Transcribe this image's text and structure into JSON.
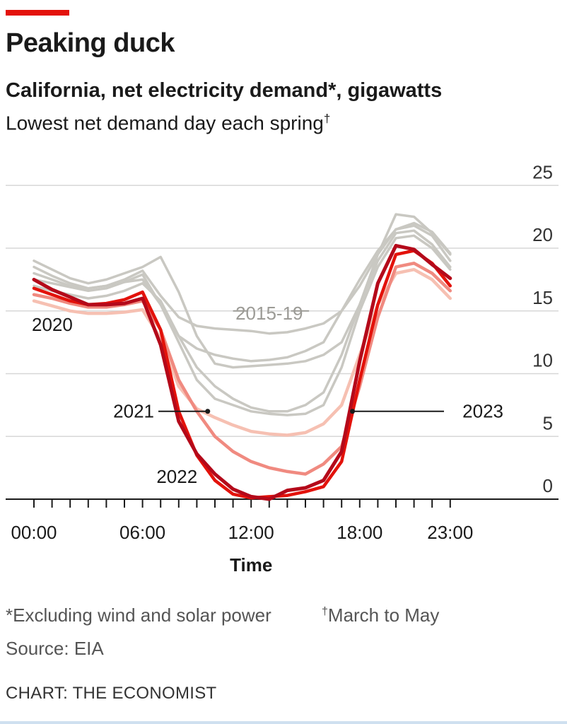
{
  "header": {
    "title": "Peaking duck",
    "subtitle": "California, net electricity demand*, gigawatts",
    "subtitle2": "Lowest net demand day each spring",
    "subtitle2_mark": "†"
  },
  "footer": {
    "note1": "*Excluding wind and solar power",
    "note2_mark": "†",
    "note2": "March to May",
    "source": "Source: EIA",
    "credit": "CHART: THE ECONOMIST"
  },
  "chart_data": {
    "type": "line",
    "xlabel": "Time",
    "ylabel": "",
    "ylim": [
      0,
      25
    ],
    "yticks": [
      0,
      5,
      10,
      15,
      20,
      25
    ],
    "xlim": [
      0,
      24
    ],
    "xticks_minor": [
      0,
      1,
      2,
      3,
      4,
      5,
      6,
      7,
      8,
      9,
      10,
      11,
      12,
      13,
      14,
      15,
      16,
      17,
      18,
      19,
      20,
      21,
      22,
      23
    ],
    "xtick_labels": [
      {
        "x": 0,
        "label": "00:00"
      },
      {
        "x": 6,
        "label": "06:00"
      },
      {
        "x": 12,
        "label": "12:00"
      },
      {
        "x": 18,
        "label": "18:00"
      },
      {
        "x": 23,
        "label": "23:00"
      }
    ],
    "grid": true,
    "colors": {
      "gray": "#c9c8c2",
      "2020": "#f6c0b2",
      "2021": "#f08a80",
      "2022": "#e3120b",
      "2023": "#b4091a",
      "axis": "#1a1a1a",
      "gridline": "#d7d7d7"
    },
    "group_label": "2015-19",
    "series": [
      {
        "name": "",
        "group": "2015-19",
        "colorKey": "gray",
        "x": [
          0,
          1,
          2,
          3,
          4,
          5,
          6,
          7,
          8,
          9,
          10,
          11,
          12,
          13,
          14,
          15,
          16,
          17,
          18,
          19,
          20,
          21,
          22,
          23
        ],
        "y": [
          17.5,
          17.2,
          16.9,
          16.6,
          16.8,
          17.3,
          17.9,
          15.5,
          13.0,
          12.0,
          11.5,
          11.2,
          11.0,
          11.1,
          11.3,
          11.8,
          12.5,
          15.0,
          17.5,
          19.8,
          21.5,
          21.8,
          21.0,
          19.0
        ]
      },
      {
        "name": "",
        "group": "2015-19",
        "colorKey": "gray",
        "x": [
          0,
          1,
          2,
          3,
          4,
          5,
          6,
          7,
          8,
          9,
          10,
          11,
          12,
          13,
          14,
          15,
          16,
          17,
          18,
          19,
          20,
          21,
          22,
          23
        ],
        "y": [
          18.0,
          17.5,
          17.0,
          16.8,
          17.0,
          17.5,
          18.2,
          16.2,
          14.5,
          13.8,
          13.6,
          13.5,
          13.4,
          13.2,
          13.3,
          13.6,
          14.0,
          15.0,
          17.0,
          19.5,
          21.5,
          22.0,
          21.3,
          19.6
        ]
      },
      {
        "name": "",
        "group": "2015-19",
        "colorKey": "gray",
        "x": [
          0,
          1,
          2,
          3,
          4,
          5,
          6,
          7,
          8,
          9,
          10,
          11,
          12,
          13,
          14,
          15,
          16,
          17,
          18,
          19,
          20,
          21,
          22,
          23
        ],
        "y": [
          19.0,
          18.3,
          17.6,
          17.2,
          17.5,
          18.0,
          18.5,
          19.3,
          16.5,
          13.0,
          10.8,
          10.5,
          10.6,
          10.7,
          10.8,
          11.0,
          11.5,
          12.5,
          15.5,
          19.5,
          22.7,
          22.5,
          21.2,
          19.5
        ]
      },
      {
        "name": "",
        "group": "2015-19",
        "colorKey": "gray",
        "x": [
          0,
          1,
          2,
          3,
          4,
          5,
          6,
          7,
          8,
          9,
          10,
          11,
          12,
          13,
          14,
          15,
          16,
          17,
          18,
          19,
          20,
          21,
          22,
          23
        ],
        "y": [
          17.0,
          16.6,
          16.3,
          16.0,
          16.2,
          16.6,
          17.2,
          15.8,
          13.0,
          10.5,
          9.0,
          8.0,
          7.3,
          7.0,
          7.0,
          7.5,
          8.5,
          11.5,
          15.5,
          19.0,
          21.2,
          21.4,
          20.3,
          18.5
        ]
      },
      {
        "name": "",
        "group": "2015-19",
        "colorKey": "gray",
        "x": [
          0,
          1,
          2,
          3,
          4,
          5,
          6,
          7,
          8,
          9,
          10,
          11,
          12,
          13,
          14,
          15,
          16,
          17,
          18,
          19,
          20,
          21,
          22,
          23
        ],
        "y": [
          18.5,
          17.8,
          17.2,
          16.8,
          17.0,
          17.3,
          17.5,
          15.5,
          12.5,
          9.5,
          8.0,
          7.5,
          7.0,
          6.8,
          6.7,
          6.8,
          7.5,
          10.5,
          15.0,
          18.5,
          20.8,
          21.0,
          20.0,
          18.3
        ]
      },
      {
        "name": "2020",
        "colorKey": "2020",
        "x": [
          0,
          1,
          2,
          3,
          4,
          5,
          6,
          7,
          8,
          9,
          10,
          11,
          12,
          13,
          14,
          15,
          16,
          17,
          18,
          19,
          20,
          21,
          22,
          23
        ],
        "y": [
          15.8,
          15.4,
          15.0,
          14.8,
          14.8,
          14.9,
          15.1,
          12.8,
          9.0,
          7.2,
          6.5,
          5.9,
          5.4,
          5.2,
          5.1,
          5.3,
          6.0,
          7.5,
          11.5,
          15.5,
          18.0,
          18.3,
          17.5,
          16.0
        ]
      },
      {
        "name": "2021",
        "colorKey": "2021",
        "x": [
          0,
          1,
          2,
          3,
          4,
          5,
          6,
          7,
          8,
          9,
          10,
          11,
          12,
          13,
          14,
          15,
          16,
          17,
          18,
          19,
          20,
          21,
          22,
          23
        ],
        "y": [
          16.3,
          16.0,
          15.6,
          15.3,
          15.3,
          15.5,
          15.8,
          13.5,
          9.5,
          7.0,
          5.0,
          3.8,
          3.0,
          2.5,
          2.2,
          2.0,
          2.8,
          4.2,
          9.0,
          14.5,
          18.5,
          18.8,
          18.0,
          16.6
        ]
      },
      {
        "name": "2022",
        "colorKey": "2022",
        "x": [
          0,
          1,
          2,
          3,
          4,
          5,
          6,
          7,
          8,
          9,
          10,
          11,
          12,
          13,
          14,
          15,
          16,
          17,
          18,
          19,
          20,
          21,
          22,
          23
        ],
        "y": [
          16.8,
          16.3,
          15.8,
          15.5,
          15.6,
          15.9,
          16.5,
          13.5,
          7.0,
          3.5,
          1.5,
          0.4,
          0.1,
          0.2,
          0.3,
          0.6,
          1.0,
          3.0,
          9.5,
          15.5,
          19.5,
          19.8,
          18.8,
          17.0
        ]
      },
      {
        "name": "2023",
        "colorKey": "2023",
        "x": [
          0,
          1,
          2,
          3,
          4,
          5,
          6,
          7,
          8,
          9,
          10,
          11,
          12,
          13,
          14,
          15,
          16,
          17,
          18,
          19,
          20,
          21,
          22,
          23
        ],
        "y": [
          17.5,
          16.7,
          16.1,
          15.5,
          15.5,
          15.6,
          16.0,
          12.3,
          6.2,
          3.6,
          2.0,
          0.8,
          0.2,
          0.0,
          0.7,
          0.9,
          1.5,
          3.8,
          11.0,
          17.2,
          20.2,
          19.9,
          18.7,
          17.6
        ]
      }
    ],
    "annotations": [
      {
        "text": "2020"
      },
      {
        "text": "2015-19"
      },
      {
        "text": "2021"
      },
      {
        "text": "2022"
      },
      {
        "text": "2023"
      }
    ]
  }
}
